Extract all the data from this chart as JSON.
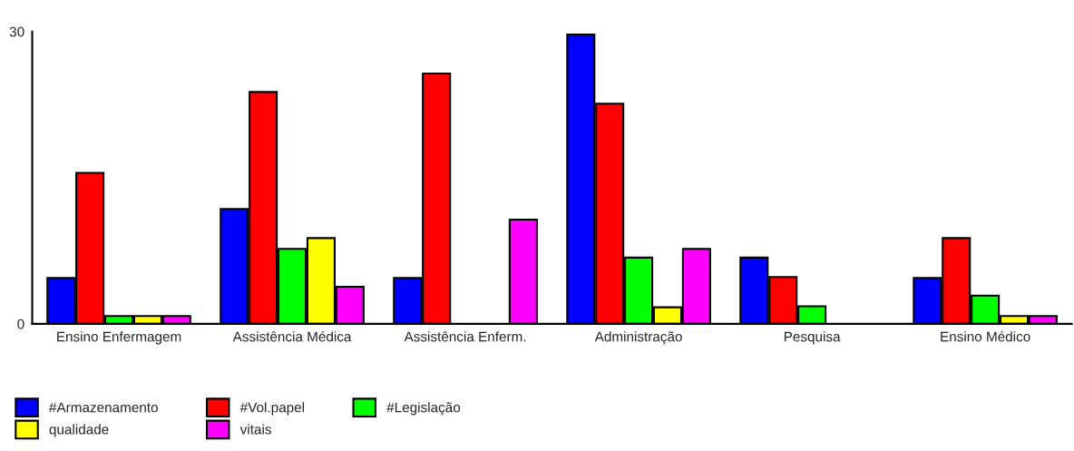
{
  "chart_data": {
    "type": "bar",
    "categories": [
      "Ensino Enfermagem",
      "Assistência Médica",
      "Assistência Enferm.",
      "Administração",
      "Pesquisa",
      "Ensino Médico"
    ],
    "series": [
      {
        "name": "#Armazenamento",
        "color": "#0000ff",
        "values": [
          4.7,
          11.8,
          4.7,
          29.7,
          6.8,
          4.7
        ]
      },
      {
        "name": "#Vol.papel",
        "color": "#ff0000",
        "values": [
          15.5,
          23.8,
          25.7,
          22.6,
          4.8,
          8.8
        ]
      },
      {
        "name": "#Legislação",
        "color": "#00ff00",
        "values": [
          0.8,
          7.7,
          null,
          6.8,
          1.8,
          2.9
        ]
      },
      {
        "name": "qualidade",
        "color": "#ffff00",
        "values": [
          0.8,
          8.8,
          null,
          1.7,
          null,
          0.8
        ]
      },
      {
        "name": "vitais",
        "color": "#ff00ff",
        "values": [
          0.8,
          3.8,
          10.7,
          7.7,
          null,
          0.8
        ]
      }
    ],
    "ylim": [
      0,
      30
    ],
    "yticks": [
      0,
      30
    ],
    "grid": false,
    "legend": "bottom left"
  }
}
